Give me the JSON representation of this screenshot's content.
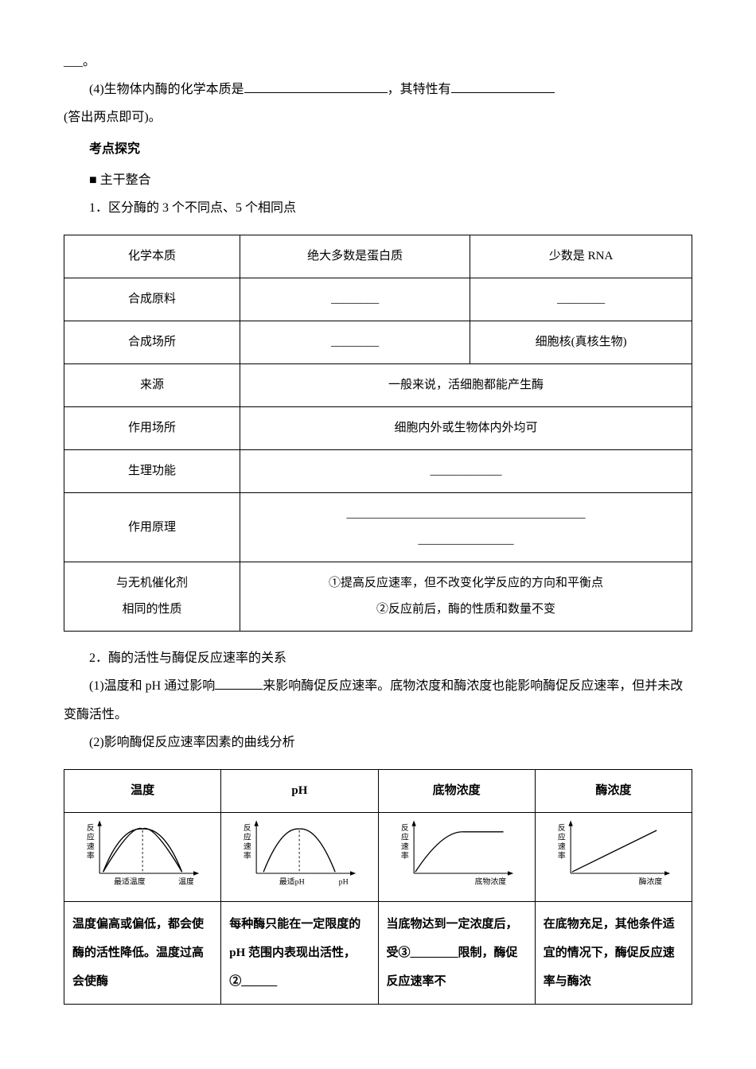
{
  "top": {
    "fragment_end": "___。",
    "q4_prefix": "(4)生物体内酶的化学本质是",
    "q4_mid": "，其特性有",
    "q4_suffix": "(答出两点即可)。"
  },
  "headings": {
    "kaodian": "考点探究",
    "zhugan": "■ 主干整合",
    "item1": "1．区分酶的 3 个不同点、5 个相同点"
  },
  "table1": {
    "rows": [
      {
        "label": "化学本质",
        "c1": "绝大多数是蛋白质",
        "c2": "少数是 RNA",
        "merged": false,
        "blank1": false,
        "blank2": false
      },
      {
        "label": "合成原料",
        "c1": "________",
        "c2": "________",
        "merged": false,
        "blank1": true,
        "blank2": true
      },
      {
        "label": "合成场所",
        "c1": "________",
        "c2": "细胞核(真核生物)",
        "merged": false,
        "blank1": true,
        "blank2": false
      },
      {
        "label": "来源",
        "c1": "一般来说，活细胞都能产生酶",
        "merged": true
      },
      {
        "label": "作用场所",
        "c1": "细胞内外或生物体内外均可",
        "merged": true
      },
      {
        "label": "生理功能",
        "c1": "____________",
        "merged": true,
        "blank1": true
      },
      {
        "label": "作用原理",
        "c1": "________________________________________\n________________",
        "merged": true,
        "blank1": true,
        "multiline": true
      },
      {
        "label": "与无机催化剂\n相同的性质",
        "c1": "①提高反应速率，但不改变化学反应的方向和平衡点\n②反应前后，酶的性质和数量不变",
        "merged": true,
        "multiline": true
      }
    ]
  },
  "mid": {
    "item2": "2．酶的活性与酶促反应速率的关系",
    "p1_a": "(1)温度和 pH 通过影响",
    "p1_b": "来影响酶促反应速率。底物浓度和酶浓度也能影响酶促反应速率，但并未改变酶活性。",
    "p2": "(2)影响酶促反应速率因素的曲线分析"
  },
  "table2": {
    "headers": [
      "温度",
      "pH",
      "底物浓度",
      "酶浓度"
    ],
    "charts": {
      "ylabel": "反应速率",
      "xlabels": [
        "温度",
        "pH",
        "底物浓度",
        "酶浓度"
      ],
      "markers": {
        "opt_temp": "最适温度",
        "opt_ph": "最适pH"
      }
    },
    "desc": [
      "温度偏高或偏低，都会使酶的活性降低。温度过高会使酶",
      "每种酶只能在一定限度的 pH 范围内表现出活性，②______",
      "当底物达到一定浓度后，受③________限制，酶促反应速率不",
      "在底物充足，其他条件适宜的情况下，酶促反应速率与酶浓"
    ]
  },
  "style": {
    "axis_color": "#000000",
    "curve_color": "#000000",
    "label_fontsize": 11
  }
}
